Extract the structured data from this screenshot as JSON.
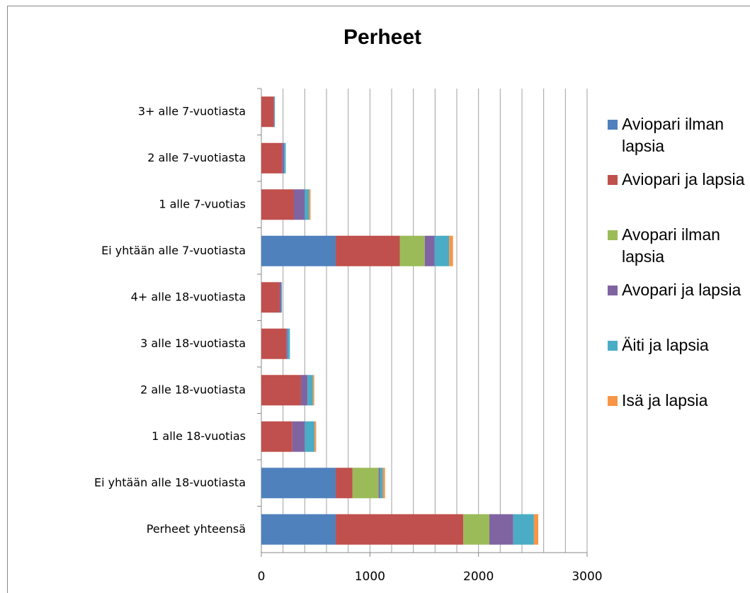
{
  "chart_data": {
    "type": "stacked_barh",
    "title": "Perheet",
    "categories": [
      "3+ alle 7-vuotiasta",
      "2 alle 7-vuotiasta",
      "1 alle 7-vuotias",
      "Ei yhtään alle 7-vuotiasta",
      "4+ alle 18-vuotiasta",
      "3 alle 18-vuotiasta",
      "2 alle 18-vuotiasta",
      "1 alle 18-vuotias",
      "Ei yhtään alle 18-vuotiasta",
      "Perheet yhteensä"
    ],
    "series": [
      {
        "name": "Aviopari ilman lapsia",
        "color": "#4f81bd",
        "values": [
          0,
          0,
          0,
          685,
          0,
          0,
          0,
          0,
          685,
          685
        ]
      },
      {
        "name": "Aviopari ja lapsia",
        "color": "#c0504d",
        "values": [
          115,
          190,
          300,
          590,
          170,
          230,
          365,
          285,
          155,
          1175
        ]
      },
      {
        "name": "Avopari ilman lapsia",
        "color": "#9bbb59",
        "values": [
          0,
          0,
          0,
          230,
          0,
          0,
          0,
          0,
          240,
          240
        ]
      },
      {
        "name": "Avopari ja lapsia",
        "color": "#8064a2",
        "values": [
          5,
          20,
          100,
          90,
          13,
          13,
          60,
          115,
          13,
          220
        ]
      },
      {
        "name": "Äiti ja lapsia",
        "color": "#4bacc6",
        "values": [
          5,
          15,
          40,
          135,
          7,
          20,
          50,
          90,
          26,
          190
        ]
      },
      {
        "name": "Isä ja lapsia",
        "color": "#f79646",
        "values": [
          0,
          0,
          13,
          35,
          0,
          0,
          12,
          15,
          20,
          40
        ]
      }
    ],
    "xlim": [
      0,
      3000
    ],
    "xticks": [
      0,
      1000,
      2000,
      3000
    ],
    "minor_xticks": [
      200,
      400,
      600,
      800,
      1200,
      1400,
      1600,
      1800,
      2200,
      2400,
      2600,
      2800
    ],
    "grid": true,
    "legend": "right"
  }
}
